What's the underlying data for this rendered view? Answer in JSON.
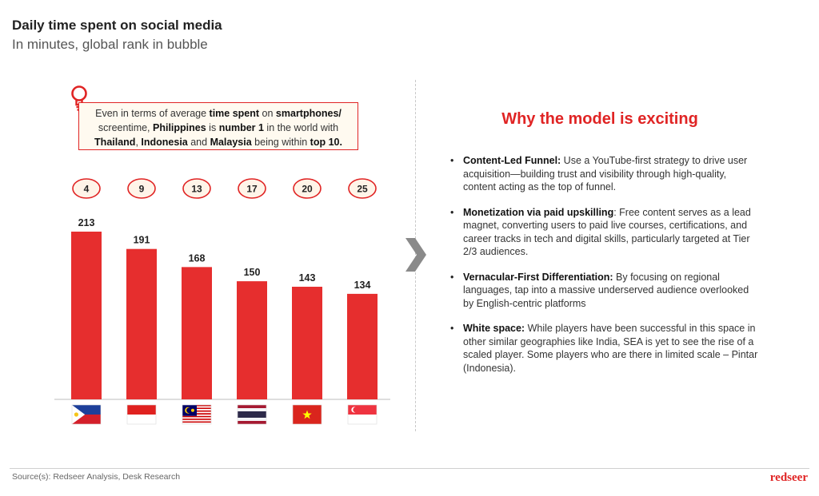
{
  "header": {
    "title": "Daily time spent on social media",
    "subtitle": "In minutes, global rank in bubble"
  },
  "insight": {
    "icon": "lightbulb-icon",
    "parts": [
      {
        "text": "Even in terms of average ",
        "bold": false
      },
      {
        "text": "time spent",
        "bold": true
      },
      {
        "text": " on ",
        "bold": false
      },
      {
        "text": "smartphones/",
        "bold": true
      },
      {
        "text": " screentime, ",
        "bold": false
      },
      {
        "text": "Philippines",
        "bold": true
      },
      {
        "text": " is ",
        "bold": false
      },
      {
        "text": "number 1",
        "bold": true
      },
      {
        "text": " in the world with ",
        "bold": false
      },
      {
        "text": "Thailand",
        "bold": true
      },
      {
        "text": ",  ",
        "bold": false
      },
      {
        "text": "Indonesia",
        "bold": true
      },
      {
        "text": " and ",
        "bold": false
      },
      {
        "text": "Malaysia",
        "bold": true
      },
      {
        "text": " being within ",
        "bold": false
      },
      {
        "text": "top 10.",
        "bold": true
      }
    ]
  },
  "chart_data": {
    "type": "bar",
    "title": "Daily time spent on social media",
    "subtitle": "In minutes, global rank in bubble",
    "categories": [
      "philippines-flag",
      "indonesia-flag",
      "malaysia-flag",
      "thailand-flag",
      "vietnam-flag",
      "singapore-flag"
    ],
    "values": [
      213,
      191,
      168,
      150,
      143,
      134
    ],
    "ranks": [
      "4",
      "9",
      "13",
      "17",
      "20",
      "25"
    ],
    "bar_color": "#e62e2e",
    "bubble_border_color": "#e02424",
    "bubble_fill_color": "#fff4e8",
    "ylim": [
      0,
      213
    ],
    "grid": false
  },
  "right_panel": {
    "heading": "Why the model is exciting",
    "bullets": [
      {
        "title": "Content-Led Funnel:",
        "text": " Use a YouTube-first strategy to drive user acquisition—building trust and visibility through high-quality, content acting as the top of funnel."
      },
      {
        "title": "Monetization via paid upskilling",
        "text": ": Free content serves as a lead magnet, converting users to paid live courses, certifications, and career tracks in tech and digital skills, particularly targeted at Tier 2/3 audiences."
      },
      {
        "title": "Vernacular-First Differentiation:",
        "text": " By focusing on regional languages, tap into a massive underserved audience overlooked by English-centric platforms"
      },
      {
        "title": "White space:",
        "text": " While players have been successful in this space in other similar geographies like India, SEA is yet to see the rise of a scaled player. Some players who are there in limited scale – Pintar (Indonesia)."
      }
    ]
  },
  "footer": {
    "source": "Source(s): Redseer Analysis, Desk Research",
    "brand": "redseer"
  },
  "colors": {
    "accent": "#e02424",
    "arrow": "#8a8a8a"
  }
}
